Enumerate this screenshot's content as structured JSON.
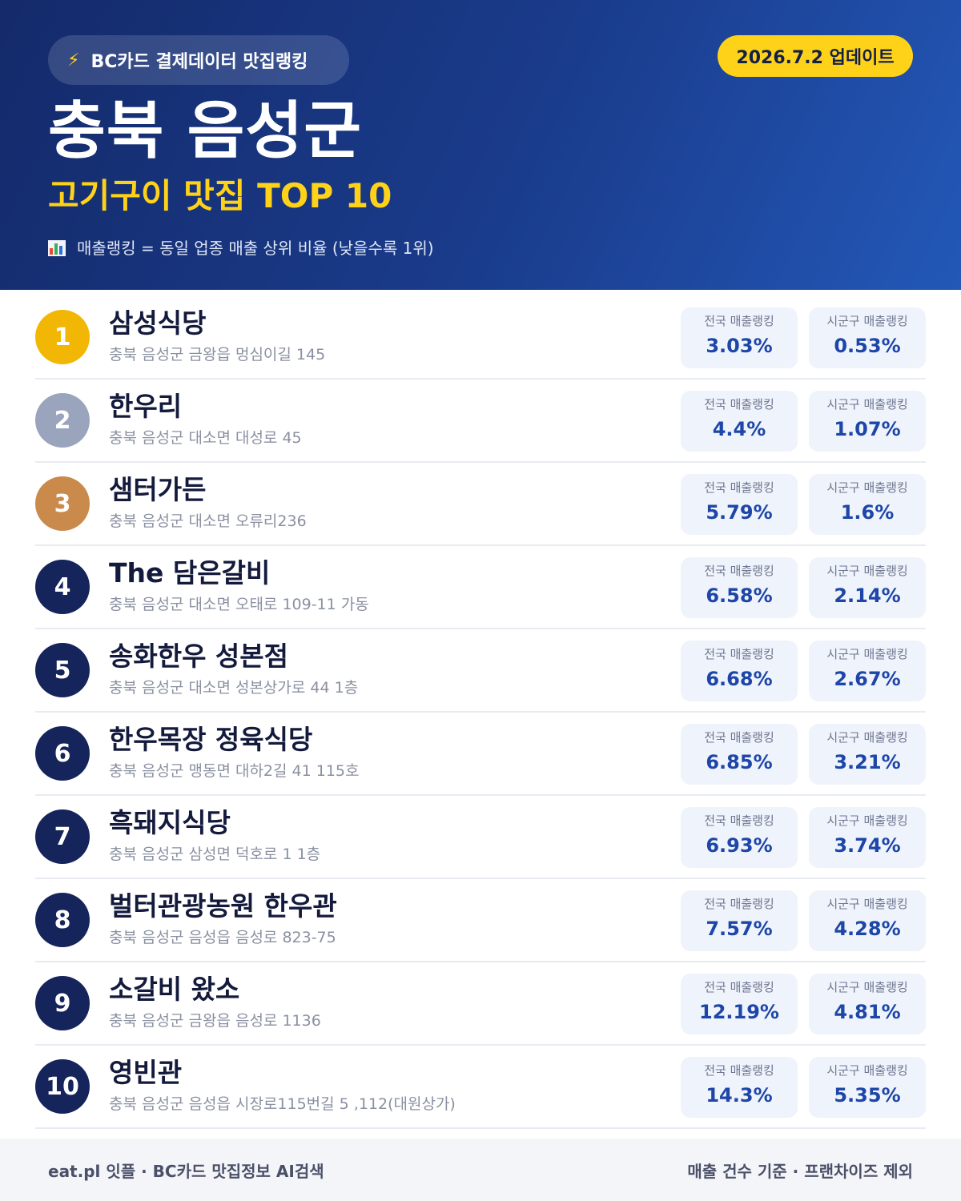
{
  "header": {
    "brand": "BC카드 결제데이터 맛집랭킹",
    "brand_icon": "lightning-icon",
    "update": "2026.7.2 업데이트",
    "region": "충북 음성군",
    "subtitle": "고기구이 맛집 TOP 10",
    "note": "매출랭킹 = 동일 업종 매출 상위 비율 (낮을수록 1위)",
    "note_icon": "bar-chart-icon"
  },
  "labels": {
    "national": "전국 매출랭킹",
    "local": "시군구 매출랭킹"
  },
  "colors": {
    "header_start": "#142a6a",
    "header_end": "#2358b8",
    "accent_yellow": "#ffd21a",
    "rank_gold": "#f2b705",
    "rank_silver": "#9aa5bd",
    "rank_bronze": "#c98a4c",
    "rank_default": "#15245a",
    "value_blue": "#1d46a8"
  },
  "restaurants": [
    {
      "rank": "1",
      "name": "삼성식당",
      "address": "충북 음성군 금왕읍 멍심이길 145",
      "national": "3.03%",
      "local": "0.53%"
    },
    {
      "rank": "2",
      "name": "한우리",
      "address": "충북 음성군 대소면 대성로 45",
      "national": "4.4%",
      "local": "1.07%"
    },
    {
      "rank": "3",
      "name": "샘터가든",
      "address": "충북 음성군 대소면 오류리236",
      "national": "5.79%",
      "local": "1.6%"
    },
    {
      "rank": "4",
      "name": "The 담은갈비",
      "address": "충북 음성군 대소면 오태로 109-11 가동",
      "national": "6.58%",
      "local": "2.14%"
    },
    {
      "rank": "5",
      "name": "송화한우 성본점",
      "address": "충북 음성군 대소면 성본상가로 44 1층",
      "national": "6.68%",
      "local": "2.67%"
    },
    {
      "rank": "6",
      "name": "한우목장 정육식당",
      "address": "충북 음성군 맹동면 대하2길 41 115호",
      "national": "6.85%",
      "local": "3.21%"
    },
    {
      "rank": "7",
      "name": "흑돼지식당",
      "address": "충북 음성군 삼성면 덕호로 1 1층",
      "national": "6.93%",
      "local": "3.74%"
    },
    {
      "rank": "8",
      "name": "벌터관광농원 한우관",
      "address": "충북 음성군 음성읍 음성로 823-75",
      "national": "7.57%",
      "local": "4.28%"
    },
    {
      "rank": "9",
      "name": "소갈비 왔소",
      "address": "충북 음성군 금왕읍 음성로 1136",
      "national": "12.19%",
      "local": "4.81%"
    },
    {
      "rank": "10",
      "name": "영빈관",
      "address": "충북 음성군 음성읍 시장로115번길 5 ,112(대원상가)",
      "national": "14.3%",
      "local": "5.35%"
    }
  ],
  "footer": {
    "left": "eat.pl 잇플 · BC카드 맛집정보 AI검색",
    "right": "매출 건수 기준 · 프랜차이즈 제외"
  }
}
